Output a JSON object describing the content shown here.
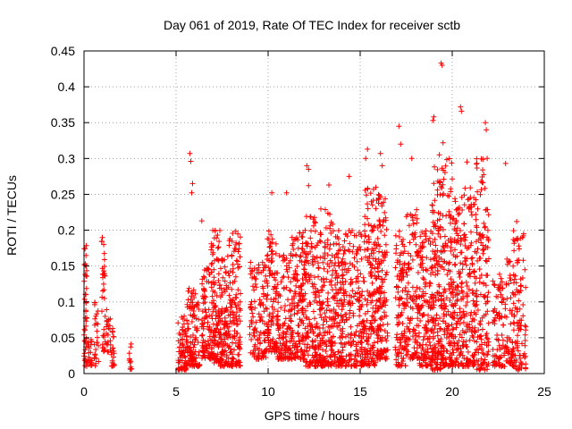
{
  "chart_data": {
    "type": "scatter",
    "title": "Day 061 of 2019, Rate Of TEC Index for receiver sctb",
    "xlabel": "GPS time / hours",
    "ylabel": "ROTI / TECUs",
    "xlim": [
      0,
      25
    ],
    "ylim": [
      0,
      0.45
    ],
    "xticks": [
      0,
      5,
      10,
      15,
      20,
      25
    ],
    "xtick_labels": [
      "0",
      "5",
      "10",
      "15",
      "20",
      "25"
    ],
    "yticks": [
      0,
      0.05,
      0.1,
      0.15,
      0.2,
      0.25,
      0.3,
      0.35,
      0.4,
      0.45
    ],
    "ytick_labels": [
      "0",
      "0.05",
      "0.1",
      "0.15",
      "0.2",
      "0.25",
      "0.3",
      "0.35",
      "0.4",
      "0.45"
    ],
    "grid": true,
    "marker": "+",
    "series": [
      {
        "name": "ROTI",
        "color": "#ff0000",
        "description": "dense scatter of ROTI samples; clusters listed as [x_start, x_end, y_low, y_high, point_count]",
        "clusters": [
          [
            0.0,
            0.15,
            0.01,
            0.18,
            45
          ],
          [
            0.2,
            0.45,
            0.01,
            0.06,
            20
          ],
          [
            0.55,
            0.8,
            0.01,
            0.1,
            25
          ],
          [
            0.95,
            1.15,
            0.03,
            0.19,
            35
          ],
          [
            1.2,
            1.35,
            0.03,
            0.1,
            15
          ],
          [
            1.4,
            1.65,
            0.01,
            0.08,
            25
          ],
          [
            2.45,
            2.6,
            0.005,
            0.075,
            12
          ],
          [
            5.1,
            5.6,
            0.005,
            0.08,
            80
          ],
          [
            5.6,
            6.3,
            0.01,
            0.12,
            110
          ],
          [
            6.4,
            6.9,
            0.02,
            0.15,
            90
          ],
          [
            6.9,
            7.4,
            0.015,
            0.2,
            120
          ],
          [
            7.4,
            7.8,
            0.01,
            0.16,
            90
          ],
          [
            7.8,
            8.5,
            0.01,
            0.2,
            140
          ],
          [
            9.0,
            9.9,
            0.02,
            0.16,
            120
          ],
          [
            9.9,
            10.5,
            0.03,
            0.2,
            110
          ],
          [
            10.5,
            11.3,
            0.02,
            0.17,
            130
          ],
          [
            11.3,
            12.0,
            0.02,
            0.2,
            140
          ],
          [
            12.0,
            12.8,
            0.01,
            0.22,
            160
          ],
          [
            12.8,
            13.6,
            0.01,
            0.23,
            170
          ],
          [
            13.6,
            14.3,
            0.01,
            0.2,
            150
          ],
          [
            14.3,
            15.2,
            0.01,
            0.2,
            150
          ],
          [
            15.2,
            15.9,
            0.01,
            0.26,
            160
          ],
          [
            15.9,
            16.5,
            0.02,
            0.25,
            150
          ],
          [
            16.9,
            17.5,
            0.01,
            0.2,
            110
          ],
          [
            17.5,
            18.2,
            0.02,
            0.23,
            120
          ],
          [
            18.2,
            18.9,
            0.01,
            0.2,
            130
          ],
          [
            18.9,
            19.4,
            0.005,
            0.29,
            150
          ],
          [
            19.4,
            20.0,
            0.01,
            0.3,
            150
          ],
          [
            20.0,
            20.6,
            0.01,
            0.25,
            130
          ],
          [
            20.6,
            21.3,
            0.01,
            0.26,
            140
          ],
          [
            21.3,
            22.0,
            0.005,
            0.3,
            140
          ],
          [
            22.2,
            22.8,
            0.01,
            0.14,
            80
          ],
          [
            22.8,
            23.3,
            0.01,
            0.16,
            60
          ],
          [
            23.3,
            24.0,
            0.005,
            0.2,
            110
          ]
        ],
        "outliers": [
          [
            5.75,
            0.307
          ],
          [
            5.8,
            0.296
          ],
          [
            5.9,
            0.265
          ],
          [
            5.85,
            0.252
          ],
          [
            6.4,
            0.213
          ],
          [
            10.2,
            0.252
          ],
          [
            11.0,
            0.252
          ],
          [
            12.1,
            0.29
          ],
          [
            12.2,
            0.285
          ],
          [
            12.2,
            0.262
          ],
          [
            13.3,
            0.263
          ],
          [
            14.4,
            0.275
          ],
          [
            15.4,
            0.313
          ],
          [
            15.3,
            0.3
          ],
          [
            16.1,
            0.307
          ],
          [
            16.2,
            0.29
          ],
          [
            17.1,
            0.345
          ],
          [
            17.2,
            0.32
          ],
          [
            17.8,
            0.3
          ],
          [
            19.0,
            0.358
          ],
          [
            18.95,
            0.353
          ],
          [
            19.4,
            0.433
          ],
          [
            19.45,
            0.43
          ],
          [
            19.5,
            0.322
          ],
          [
            19.3,
            0.305
          ],
          [
            20.45,
            0.372
          ],
          [
            20.5,
            0.366
          ],
          [
            20.8,
            0.295
          ],
          [
            21.8,
            0.35
          ],
          [
            21.85,
            0.34
          ],
          [
            21.9,
            0.3
          ],
          [
            22.9,
            0.293
          ],
          [
            23.5,
            0.212
          ]
        ]
      }
    ]
  }
}
